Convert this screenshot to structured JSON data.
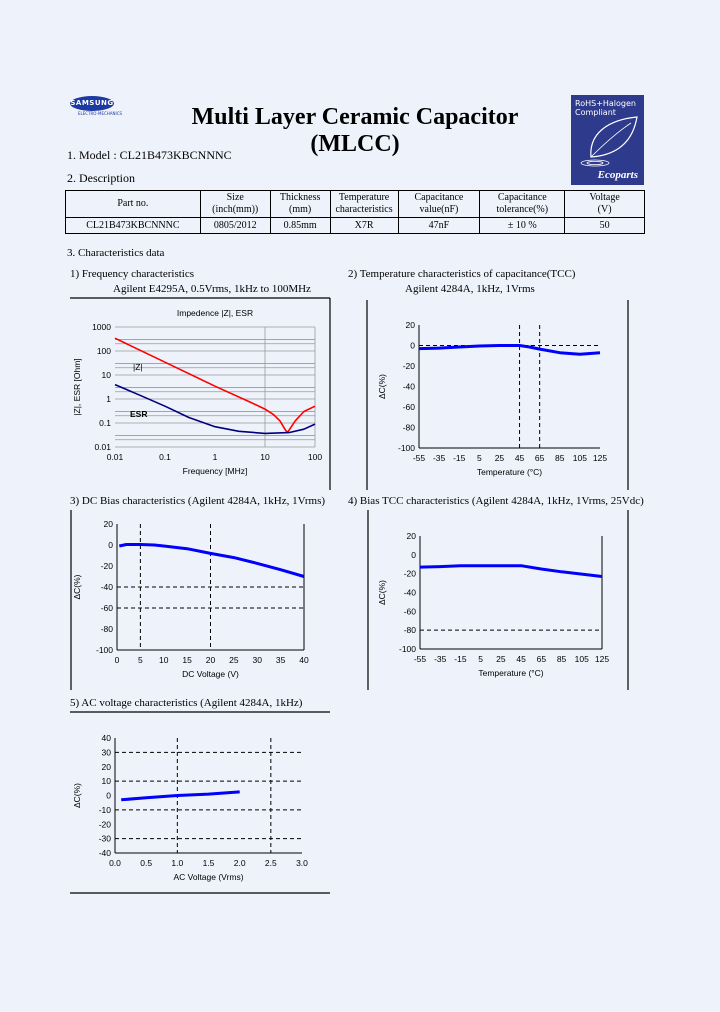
{
  "header": {
    "logo_text": "SAMSUNG",
    "logo_subtext": "ELECTRO-MECHANICS",
    "title": "Multi Layer Ceramic Capacitor (MLCC)",
    "badge": {
      "line1": "RoHS+Halogen",
      "line2": "Compliant",
      "brand": "Ecoparts",
      "color": "#2e3a8c"
    }
  },
  "model": {
    "label": "1. Model : CL21B473KBCNNNC"
  },
  "description": {
    "heading": "2. Description",
    "columns": [
      [
        "Part no.",
        ""
      ],
      [
        "Size",
        "(inch(mm))"
      ],
      [
        "Thickness",
        "(mm)"
      ],
      [
        "Temperature",
        "characteristics"
      ],
      [
        "Capacitance",
        "value(nF)"
      ],
      [
        "Capacitance",
        "tolerance(%)"
      ],
      [
        "Voltage",
        "(V)"
      ]
    ],
    "row": [
      "CL21B473KBCNNNC",
      "0805/2012",
      "0.85mm",
      "X7R",
      "47nF",
      "± 10 %",
      "50"
    ]
  },
  "characteristics_heading": "3. Characteristics data",
  "chart_data": [
    {
      "id": "freq",
      "heading": "1) Frequency characteristics",
      "subheading": "Agilent E4295A, 0.5Vrms, 1kHz to 100MHz",
      "type": "line",
      "title": "Impedence |Z|, ESR",
      "xlabel": "Frequency [MHz]",
      "ylabel": "|Z|, ESR [Ohm]",
      "xscale": "log",
      "yscale": "log",
      "xlim": [
        0.01,
        100
      ],
      "ylim": [
        0.01,
        1000
      ],
      "xticks": [
        "0.01",
        "0.1",
        "1",
        "10",
        "100"
      ],
      "yticks": [
        "1000",
        "100",
        "10",
        "1",
        "0.1",
        "0.01"
      ],
      "grid": true,
      "series": [
        {
          "name": "|Z|",
          "color": "#ff0000",
          "x": [
            0.01,
            0.1,
            1,
            5,
            10,
            15,
            20,
            25,
            28,
            32,
            40,
            60,
            100
          ],
          "y": [
            340,
            34,
            3.4,
            0.75,
            0.38,
            0.22,
            0.12,
            0.055,
            0.04,
            0.06,
            0.12,
            0.3,
            0.5
          ]
        },
        {
          "name": "ESR",
          "color": "#00007f",
          "x": [
            0.01,
            0.03,
            0.1,
            0.3,
            1,
            3,
            10,
            30,
            60,
            100
          ],
          "y": [
            4,
            1.5,
            0.5,
            0.17,
            0.07,
            0.045,
            0.037,
            0.04,
            0.055,
            0.09
          ]
        }
      ]
    },
    {
      "id": "tcc",
      "heading": "2) Temperature characteristics of capacitance(TCC)",
      "subheading": "Agilent 4284A, 1kHz, 1Vrms",
      "type": "line",
      "xlabel": "Temperature (°C)",
      "ylabel": "ΔC(%)",
      "xlim": [
        -55,
        125
      ],
      "ylim": [
        -100,
        20
      ],
      "xticks": [
        "-55",
        "-35",
        "-15",
        "5",
        "25",
        "45",
        "65",
        "85",
        "105",
        "125"
      ],
      "yticks": [
        "20",
        "0",
        "-20",
        "-40",
        "-60",
        "-80",
        "-100"
      ],
      "ref_x": [
        45,
        65
      ],
      "ref_y": [
        0
      ],
      "series": [
        {
          "color": "#0000ff",
          "x": [
            -55,
            -35,
            -15,
            5,
            25,
            45,
            55,
            65,
            85,
            105,
            125
          ],
          "y": [
            -3,
            -2.5,
            -1.5,
            -0.5,
            0,
            0,
            -1.5,
            -3.5,
            -7,
            -8.5,
            -7
          ]
        }
      ]
    },
    {
      "id": "dcbias",
      "heading": "3) DC Bias characteristics (Agilent 4284A, 1kHz, 1Vrms)",
      "type": "line",
      "xlabel": "DC Voltage (V)",
      "ylabel": "ΔC(%)",
      "xlim": [
        0,
        40
      ],
      "ylim": [
        -100,
        20
      ],
      "xticks": [
        "0",
        "5",
        "10",
        "15",
        "20",
        "25",
        "30",
        "35",
        "40"
      ],
      "yticks": [
        "20",
        "0",
        "-20",
        "-40",
        "-60",
        "-80",
        "-100"
      ],
      "ref_x": [
        5,
        20
      ],
      "ref_y": [
        -40,
        -60
      ],
      "series": [
        {
          "color": "#0000ff",
          "x": [
            0.5,
            2,
            5,
            8,
            10,
            15,
            20,
            25,
            30,
            35,
            40
          ],
          "y": [
            -1,
            0.5,
            0.5,
            0,
            -1,
            -3.5,
            -8,
            -12,
            -17.5,
            -23.5,
            -30
          ]
        }
      ]
    },
    {
      "id": "biastcc",
      "heading": "4) Bias TCC characteristics (Agilent 4284A, 1kHz, 1Vrms, 25Vdc)",
      "type": "line",
      "xlabel": "Temperature (°C)",
      "ylabel": "ΔC(%)",
      "xlim": [
        -55,
        125
      ],
      "ylim": [
        -100,
        20
      ],
      "xticks": [
        "-55",
        "-35",
        "-15",
        "5",
        "25",
        "45",
        "65",
        "85",
        "105",
        "125"
      ],
      "yticks": [
        "20",
        "0",
        "-20",
        "-40",
        "-60",
        "-80",
        "-100"
      ],
      "ref_x": [],
      "ref_y": [
        -80
      ],
      "series": [
        {
          "color": "#0000ff",
          "x": [
            -55,
            -35,
            -15,
            5,
            25,
            45,
            65,
            85,
            105,
            125
          ],
          "y": [
            -13,
            -12.5,
            -11.5,
            -11.5,
            -11.5,
            -11.5,
            -15,
            -18,
            -20.5,
            -23
          ]
        }
      ]
    },
    {
      "id": "acv",
      "heading": "5) AC voltage characteristics (Agilent 4284A, 1kHz)",
      "type": "line",
      "xlabel": "AC Voltage (Vrms)",
      "ylabel": "ΔC(%)",
      "xlim": [
        0,
        3
      ],
      "ylim": [
        -40,
        40
      ],
      "xticks": [
        "0.0",
        "0.5",
        "1.0",
        "1.5",
        "2.0",
        "2.5",
        "3.0"
      ],
      "yticks": [
        "40",
        "30",
        "20",
        "10",
        "0",
        "-10",
        "-20",
        "-30",
        "-40"
      ],
      "ref_x": [
        1.0,
        2.5
      ],
      "ref_y": [
        30,
        10,
        -10,
        -30
      ],
      "series": [
        {
          "color": "#0000ff",
          "x": [
            0.1,
            0.5,
            1.0,
            1.5,
            2.0
          ],
          "y": [
            -3,
            -1.5,
            0,
            1,
            2.5
          ]
        }
      ]
    }
  ]
}
